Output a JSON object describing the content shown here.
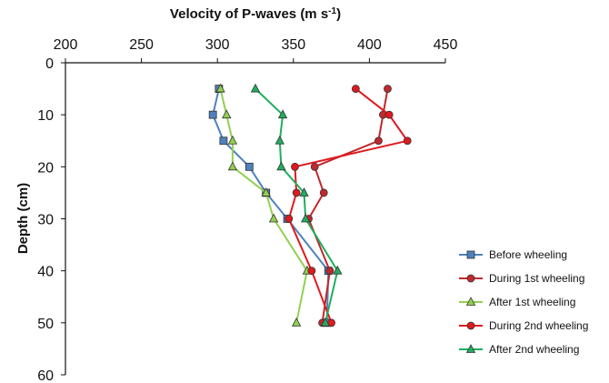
{
  "chart_data": {
    "type": "line",
    "title": "",
    "xlabel": "Velocity of P-waves (m s",
    "xlabel_superscript": "-1",
    "xlabel_close": ")",
    "ylabel": "Depth (cm)",
    "x_axis_position": "top",
    "y_inverted": true,
    "xlim": [
      200,
      450
    ],
    "ylim": [
      0,
      60
    ],
    "xticks": [
      200,
      250,
      300,
      350,
      400,
      450
    ],
    "yticks": [
      0,
      10,
      20,
      30,
      40,
      50,
      60
    ],
    "grid": false,
    "legend_position": "right",
    "series": [
      {
        "name": "Before wheeling",
        "color": "#4f81bd",
        "marker": "square",
        "points": [
          [
            301,
            5
          ],
          [
            297,
            10
          ],
          [
            304,
            15
          ],
          [
            321,
            20
          ],
          [
            332,
            25
          ],
          [
            346,
            30
          ],
          [
            373,
            40
          ],
          [
            372,
            50
          ]
        ]
      },
      {
        "name": "During 1st wheeling",
        "color": "#c0282d",
        "marker": "circle",
        "points": [
          [
            412,
            5
          ],
          [
            409,
            10
          ],
          [
            406,
            15
          ],
          [
            364,
            20
          ],
          [
            370,
            25
          ],
          [
            360,
            30
          ],
          [
            374,
            40
          ],
          [
            369,
            50
          ]
        ]
      },
      {
        "name": "After 1st wheeling",
        "color": "#92d050",
        "marker": "triangle",
        "points": [
          [
            302,
            5
          ],
          [
            306,
            10
          ],
          [
            310,
            15
          ],
          [
            310,
            20
          ],
          [
            332,
            25
          ],
          [
            337,
            30
          ],
          [
            359,
            40
          ],
          [
            352,
            50
          ]
        ]
      },
      {
        "name": "During 2nd wheeling",
        "color": "#e0191e",
        "marker": "circle",
        "points": [
          [
            391,
            5
          ],
          [
            413,
            10
          ],
          [
            425,
            15
          ],
          [
            351,
            20
          ],
          [
            352,
            25
          ],
          [
            347,
            30
          ],
          [
            362,
            40
          ],
          [
            375,
            50
          ]
        ]
      },
      {
        "name": "After 2nd wheeling",
        "color": "#1fae5e",
        "marker": "triangle",
        "points": [
          [
            325,
            5
          ],
          [
            343,
            10
          ],
          [
            341,
            15
          ],
          [
            342,
            20
          ],
          [
            357,
            25
          ],
          [
            358,
            30
          ],
          [
            379,
            40
          ],
          [
            371,
            50
          ]
        ]
      }
    ]
  }
}
